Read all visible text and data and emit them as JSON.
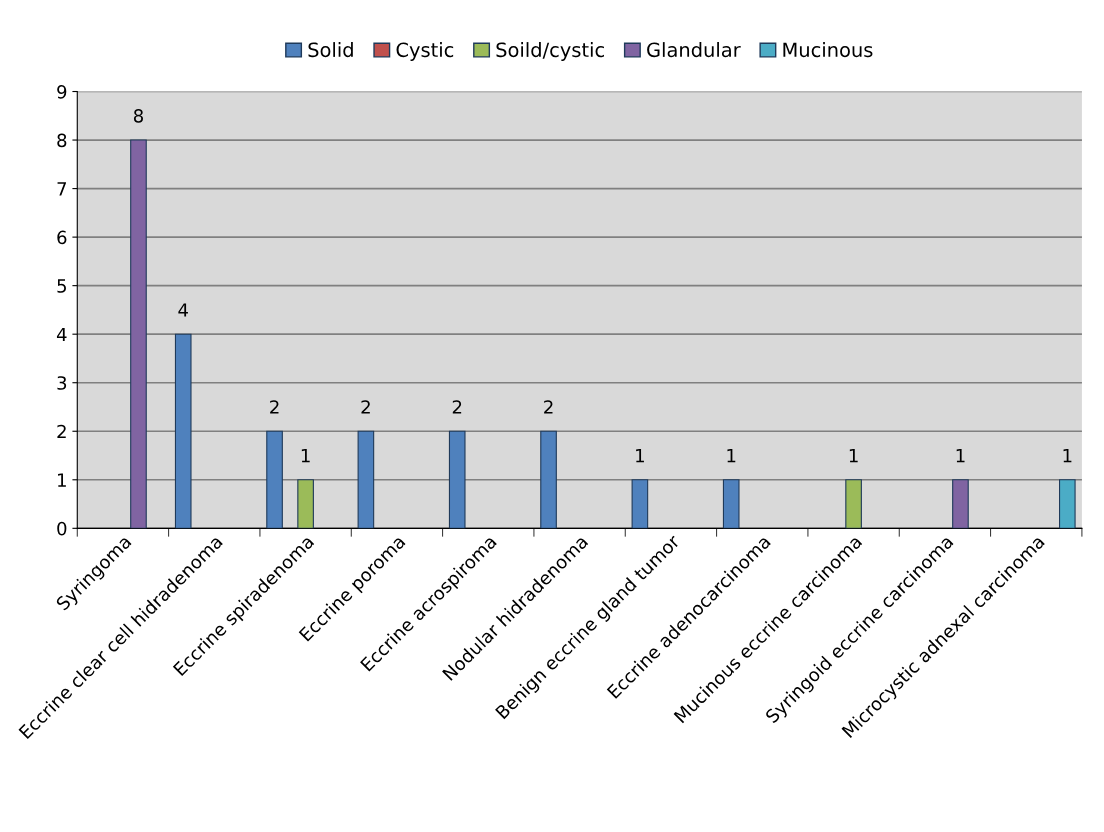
{
  "chart_data": {
    "type": "bar",
    "categories": [
      "Syringoma",
      "Eccrine clear cell hidradenoma",
      "Eccrine spiradenoma",
      "Eccrine poroma",
      "Eccrine acrospiroma",
      "Nodular hidradenoma",
      "Benign eccrine gland tumor",
      "Eccrine adenocarcinoma",
      "Mucinous eccrine carcinoma",
      "Syringoid eccrine carcinoma",
      "Microcystic adnexal carcinoma"
    ],
    "series": [
      {
        "name": "Solid",
        "color": "#4f81bd",
        "values": [
          null,
          4,
          2,
          2,
          2,
          2,
          1,
          1,
          null,
          null,
          null
        ]
      },
      {
        "name": "Cystic",
        "color": "#c0504d",
        "values": [
          null,
          null,
          null,
          null,
          null,
          null,
          null,
          null,
          null,
          null,
          null
        ]
      },
      {
        "name": "Soild/cystic",
        "color": "#9bbb59",
        "values": [
          null,
          null,
          1,
          null,
          null,
          null,
          null,
          null,
          1,
          null,
          null
        ]
      },
      {
        "name": "Glandular",
        "color": "#8064a2",
        "values": [
          8,
          null,
          null,
          null,
          null,
          null,
          null,
          null,
          null,
          1,
          null
        ]
      },
      {
        "name": "Mucinous",
        "color": "#4bacc6",
        "values": [
          null,
          null,
          null,
          null,
          null,
          null,
          null,
          null,
          null,
          null,
          1
        ]
      }
    ],
    "ylim": [
      0,
      9
    ],
    "yticks": [
      0,
      1,
      2,
      3,
      4,
      5,
      6,
      7,
      8,
      9
    ],
    "grid": "y",
    "legend": "top",
    "data_labels": true
  }
}
